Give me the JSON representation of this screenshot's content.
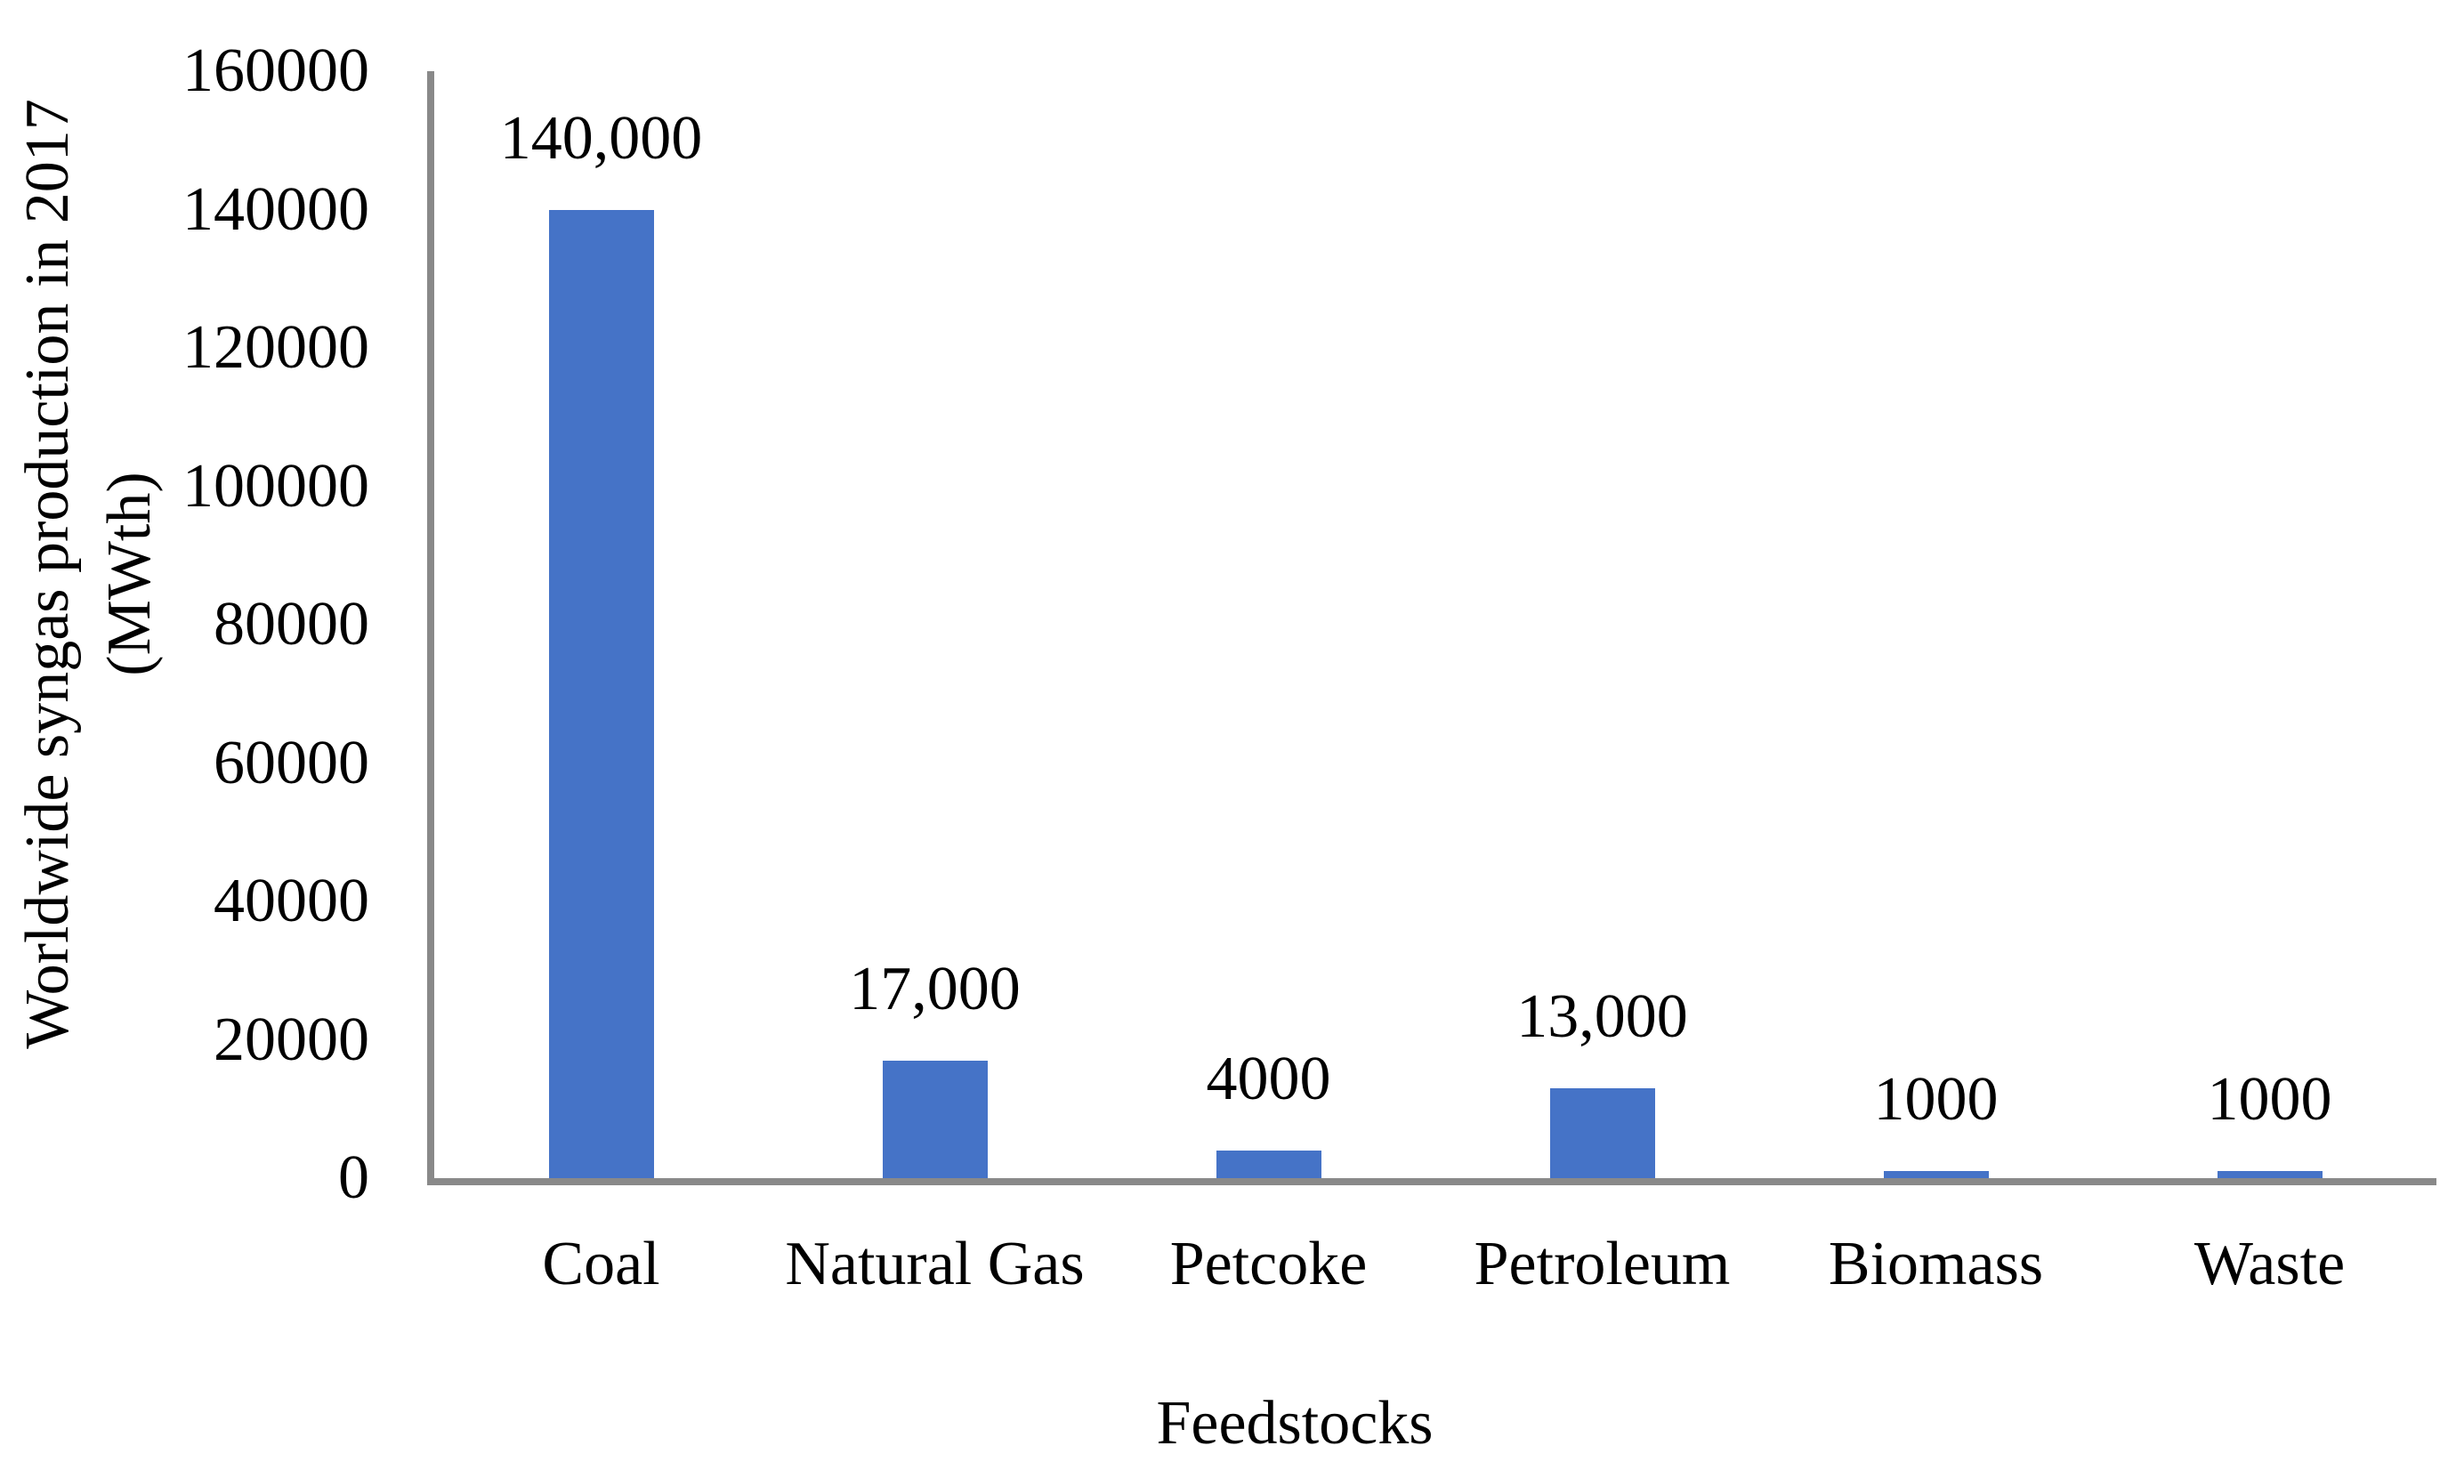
{
  "figure": {
    "background_color": "#ffffff",
    "text_color": "#000000"
  },
  "chart_data": {
    "type": "bar",
    "title": "",
    "categories": [
      "Coal",
      "Natural Gas",
      "Petcoke",
      "Petroleum",
      "Biomass",
      "Waste"
    ],
    "values": [
      140000,
      17000,
      4000,
      13000,
      1000,
      1000
    ],
    "data_labels": [
      "140,000",
      "17,000",
      "4000",
      "13,000",
      "1000",
      "1000"
    ],
    "series_name": "Worldwide syngas production in 2017",
    "xlabel": "Feedstocks",
    "ylabel_line1": "Worldwide syngas production in 2017",
    "ylabel_line2": "(MWth)",
    "ylim": [
      0,
      160000
    ],
    "ytick_interval": 20000,
    "yticks": [
      "0",
      "20000",
      "40000",
      "60000",
      "80000",
      "100000",
      "120000",
      "140000",
      "160000"
    ],
    "grid": false,
    "legend": false,
    "bar_color": "#4573C7",
    "axis_color": "#898989"
  }
}
